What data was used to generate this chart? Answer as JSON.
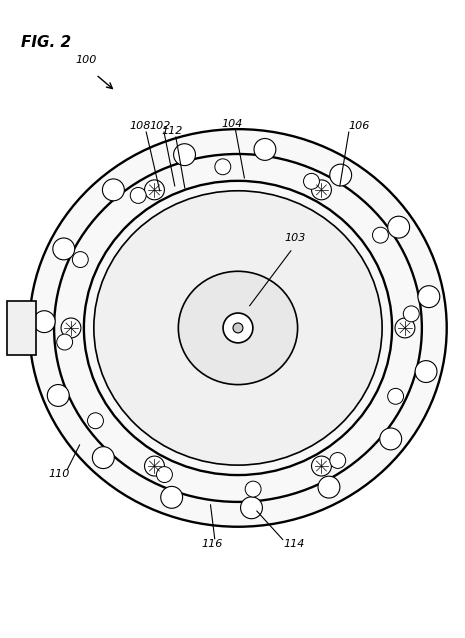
{
  "title": "FIG. 2",
  "label_100": "100",
  "label_102": "102",
  "label_103": "103",
  "label_104": "104",
  "label_106": "106",
  "label_108": "108",
  "label_110": "110",
  "label_112": "112",
  "label_114": "114",
  "label_116": "116",
  "bg_color": "#ffffff",
  "line_color": "#000000",
  "line_width": 1.2,
  "fig_width": 4.65,
  "fig_height": 6.38,
  "dpi": 100
}
